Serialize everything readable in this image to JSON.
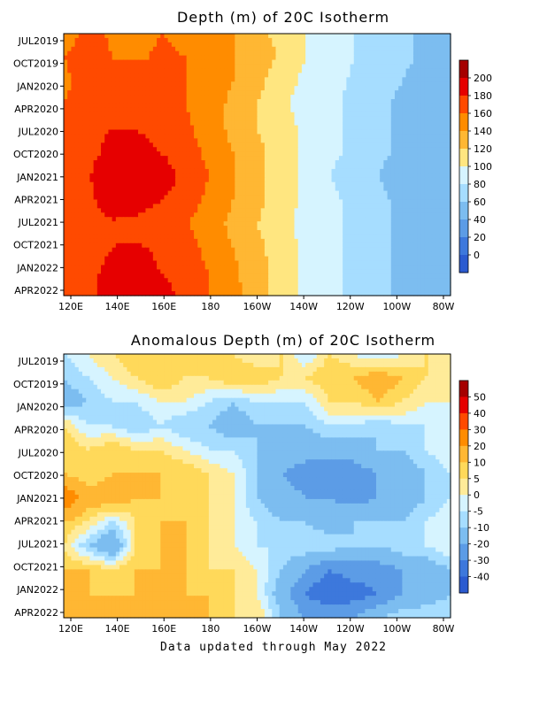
{
  "footer_text": "Data updated through May 2022",
  "chart_data": [
    {
      "type": "heatmap",
      "title": "Depth (m) of 20C Isotherm",
      "x_tick_labels": [
        "120E",
        "140E",
        "160E",
        "180",
        "160W",
        "140W",
        "120W",
        "100W",
        "80W"
      ],
      "y_tick_labels": [
        "JUL2019",
        "OCT2019",
        "JAN2020",
        "APR2020",
        "JUL2020",
        "OCT2020",
        "JAN2021",
        "APR2021",
        "JUL2021",
        "OCT2021",
        "JAN2022",
        "APR2022"
      ],
      "xlim": [
        "120E",
        "80W"
      ],
      "ylim": [
        "JUL2019",
        "MAY2022"
      ],
      "colorbar": {
        "labels": [
          "200",
          "180",
          "160",
          "140",
          "120",
          "100",
          "80",
          "60",
          "40",
          "20",
          "0"
        ],
        "colors": [
          "#a50000",
          "#e60000",
          "#ff4a00",
          "#ff8c00",
          "#ffb733",
          "#ffe680",
          "#d6f4ff",
          "#a6ddff",
          "#7cbdf0",
          "#5c9ce6",
          "#3d78dc",
          "#2b5bd0"
        ]
      },
      "longitudes": [
        "120E",
        "130E",
        "140E",
        "150E",
        "160E",
        "170E",
        "180",
        "170W",
        "160W",
        "150W",
        "140W",
        "130W",
        "120W",
        "110W",
        "100W",
        "90W",
        "80W"
      ],
      "rows": [
        {
          "time": "JUL2019",
          "values": [
            150,
            165,
            158,
            155,
            160,
            158,
            150,
            140,
            125,
            115,
            100,
            85,
            80,
            75,
            65,
            55,
            50
          ]
        },
        {
          "time": "OCT2019",
          "values": [
            160,
            170,
            160,
            158,
            162,
            160,
            150,
            140,
            128,
            118,
            100,
            88,
            80,
            75,
            65,
            55,
            50
          ]
        },
        {
          "time": "JAN2020",
          "values": [
            155,
            170,
            175,
            170,
            165,
            160,
            150,
            140,
            125,
            110,
            95,
            85,
            78,
            70,
            60,
            50,
            45
          ]
        },
        {
          "time": "APR2020",
          "values": [
            160,
            172,
            178,
            175,
            170,
            160,
            150,
            135,
            120,
            105,
            90,
            85,
            75,
            65,
            55,
            45,
            40
          ]
        },
        {
          "time": "JUL2020",
          "values": [
            165,
            175,
            180,
            180,
            175,
            165,
            150,
            135,
            120,
            110,
            95,
            85,
            75,
            65,
            55,
            45,
            40
          ]
        },
        {
          "time": "OCT2020",
          "values": [
            165,
            175,
            185,
            185,
            180,
            170,
            155,
            140,
            125,
            110,
            95,
            85,
            75,
            65,
            55,
            45,
            40
          ]
        },
        {
          "time": "JAN2021",
          "values": [
            165,
            178,
            195,
            200,
            192,
            175,
            160,
            140,
            125,
            110,
            95,
            80,
            70,
            60,
            50,
            45,
            40
          ]
        },
        {
          "time": "APR2021",
          "values": [
            165,
            175,
            190,
            190,
            180,
            170,
            155,
            140,
            125,
            110,
            95,
            85,
            75,
            65,
            55,
            45,
            40
          ]
        },
        {
          "time": "JUL2021",
          "values": [
            162,
            172,
            178,
            175,
            170,
            162,
            150,
            135,
            120,
            108,
            92,
            85,
            75,
            65,
            55,
            48,
            42
          ]
        },
        {
          "time": "OCT2021",
          "values": [
            160,
            172,
            180,
            182,
            178,
            168,
            155,
            140,
            125,
            110,
            95,
            85,
            75,
            65,
            55,
            45,
            40
          ]
        },
        {
          "time": "JAN2022",
          "values": [
            162,
            175,
            185,
            185,
            180,
            170,
            160,
            145,
            128,
            112,
            95,
            85,
            75,
            65,
            55,
            45,
            40
          ]
        },
        {
          "time": "APR2022",
          "values": [
            160,
            175,
            190,
            200,
            190,
            175,
            160,
            145,
            130,
            110,
            95,
            85,
            75,
            65,
            55,
            45,
            40
          ]
        }
      ]
    },
    {
      "type": "heatmap",
      "title": "Anomalous Depth (m) of 20C Isotherm",
      "x_tick_labels": [
        "120E",
        "140E",
        "160E",
        "180",
        "160W",
        "140W",
        "120W",
        "100W",
        "80W"
      ],
      "y_tick_labels": [
        "JUL2019",
        "OCT2019",
        "JAN2020",
        "APR2020",
        "JUL2020",
        "OCT2020",
        "JAN2021",
        "APR2021",
        "JUL2021",
        "OCT2021",
        "JAN2022",
        "APR2022"
      ],
      "xlim": [
        "120E",
        "80W"
      ],
      "ylim": [
        "JUL2019",
        "MAY2022"
      ],
      "colorbar": {
        "labels": [
          "50",
          "40",
          "30",
          "20",
          "10",
          "5",
          "0",
          "-5",
          "-10",
          "-20",
          "-30",
          "-40"
        ],
        "colors": [
          "#a50000",
          "#e60000",
          "#ff4a00",
          "#ff8c00",
          "#ffb733",
          "#ffd95a",
          "#ffeb99",
          "#d6f4ff",
          "#a6ddff",
          "#7cbdf0",
          "#5c9ce6",
          "#3d78dc",
          "#2b5bd0"
        ]
      },
      "longitudes": [
        "120E",
        "130E",
        "140E",
        "150E",
        "160E",
        "170E",
        "180",
        "170W",
        "160W",
        "150W",
        "140W",
        "130W",
        "120W",
        "110W",
        "100W",
        "90W",
        "80W"
      ],
      "rows": [
        {
          "time": "JUL2019",
          "values": [
            -5,
            0,
            5,
            10,
            5,
            10,
            10,
            5,
            0,
            5,
            -5,
            5,
            0,
            -5,
            0,
            5,
            0
          ]
        },
        {
          "time": "OCT2019",
          "values": [
            -10,
            -5,
            0,
            5,
            10,
            5,
            5,
            10,
            10,
            5,
            5,
            10,
            10,
            15,
            10,
            5,
            0
          ]
        },
        {
          "time": "JAN2020",
          "values": [
            -15,
            -10,
            -5,
            -5,
            0,
            0,
            -5,
            -10,
            -5,
            -5,
            -5,
            5,
            5,
            10,
            5,
            0,
            0
          ]
        },
        {
          "time": "APR2020",
          "values": [
            5,
            -5,
            -5,
            -10,
            -5,
            -10,
            -10,
            -15,
            -10,
            -10,
            -10,
            -5,
            -5,
            -10,
            -5,
            -5,
            0
          ]
        },
        {
          "time": "JUL2020",
          "values": [
            10,
            5,
            10,
            5,
            5,
            0,
            -5,
            -5,
            -10,
            -15,
            -15,
            -15,
            -15,
            -10,
            -10,
            -5,
            0
          ]
        },
        {
          "time": "OCT2020",
          "values": [
            10,
            5,
            10,
            10,
            10,
            10,
            5,
            0,
            -10,
            -20,
            -25,
            -30,
            -25,
            -20,
            -15,
            -10,
            -5
          ]
        },
        {
          "time": "JAN2021",
          "values": [
            30,
            15,
            15,
            10,
            10,
            5,
            5,
            0,
            -10,
            -15,
            -20,
            -20,
            -25,
            -20,
            -15,
            -10,
            -5
          ]
        },
        {
          "time": "APR2021",
          "values": [
            10,
            5,
            -5,
            5,
            10,
            10,
            5,
            0,
            -5,
            -10,
            -10,
            -15,
            -10,
            -10,
            -10,
            -5,
            0
          ]
        },
        {
          "time": "JUL2021",
          "values": [
            5,
            -10,
            -20,
            5,
            10,
            10,
            5,
            0,
            -5,
            -5,
            -5,
            -5,
            -10,
            -10,
            -5,
            -5,
            0
          ]
        },
        {
          "time": "OCT2021",
          "values": [
            10,
            10,
            5,
            10,
            10,
            10,
            5,
            5,
            0,
            -10,
            -20,
            -30,
            -25,
            -25,
            -20,
            -15,
            -10
          ]
        },
        {
          "time": "JAN2022",
          "values": [
            10,
            10,
            10,
            10,
            10,
            10,
            10,
            5,
            0,
            -15,
            -30,
            -40,
            -35,
            -30,
            -20,
            -15,
            -10
          ]
        },
        {
          "time": "APR2022",
          "values": [
            10,
            10,
            10,
            10,
            10,
            10,
            10,
            5,
            5,
            -10,
            -20,
            -20,
            -20,
            -10,
            -5,
            -5,
            -5
          ]
        }
      ]
    }
  ]
}
